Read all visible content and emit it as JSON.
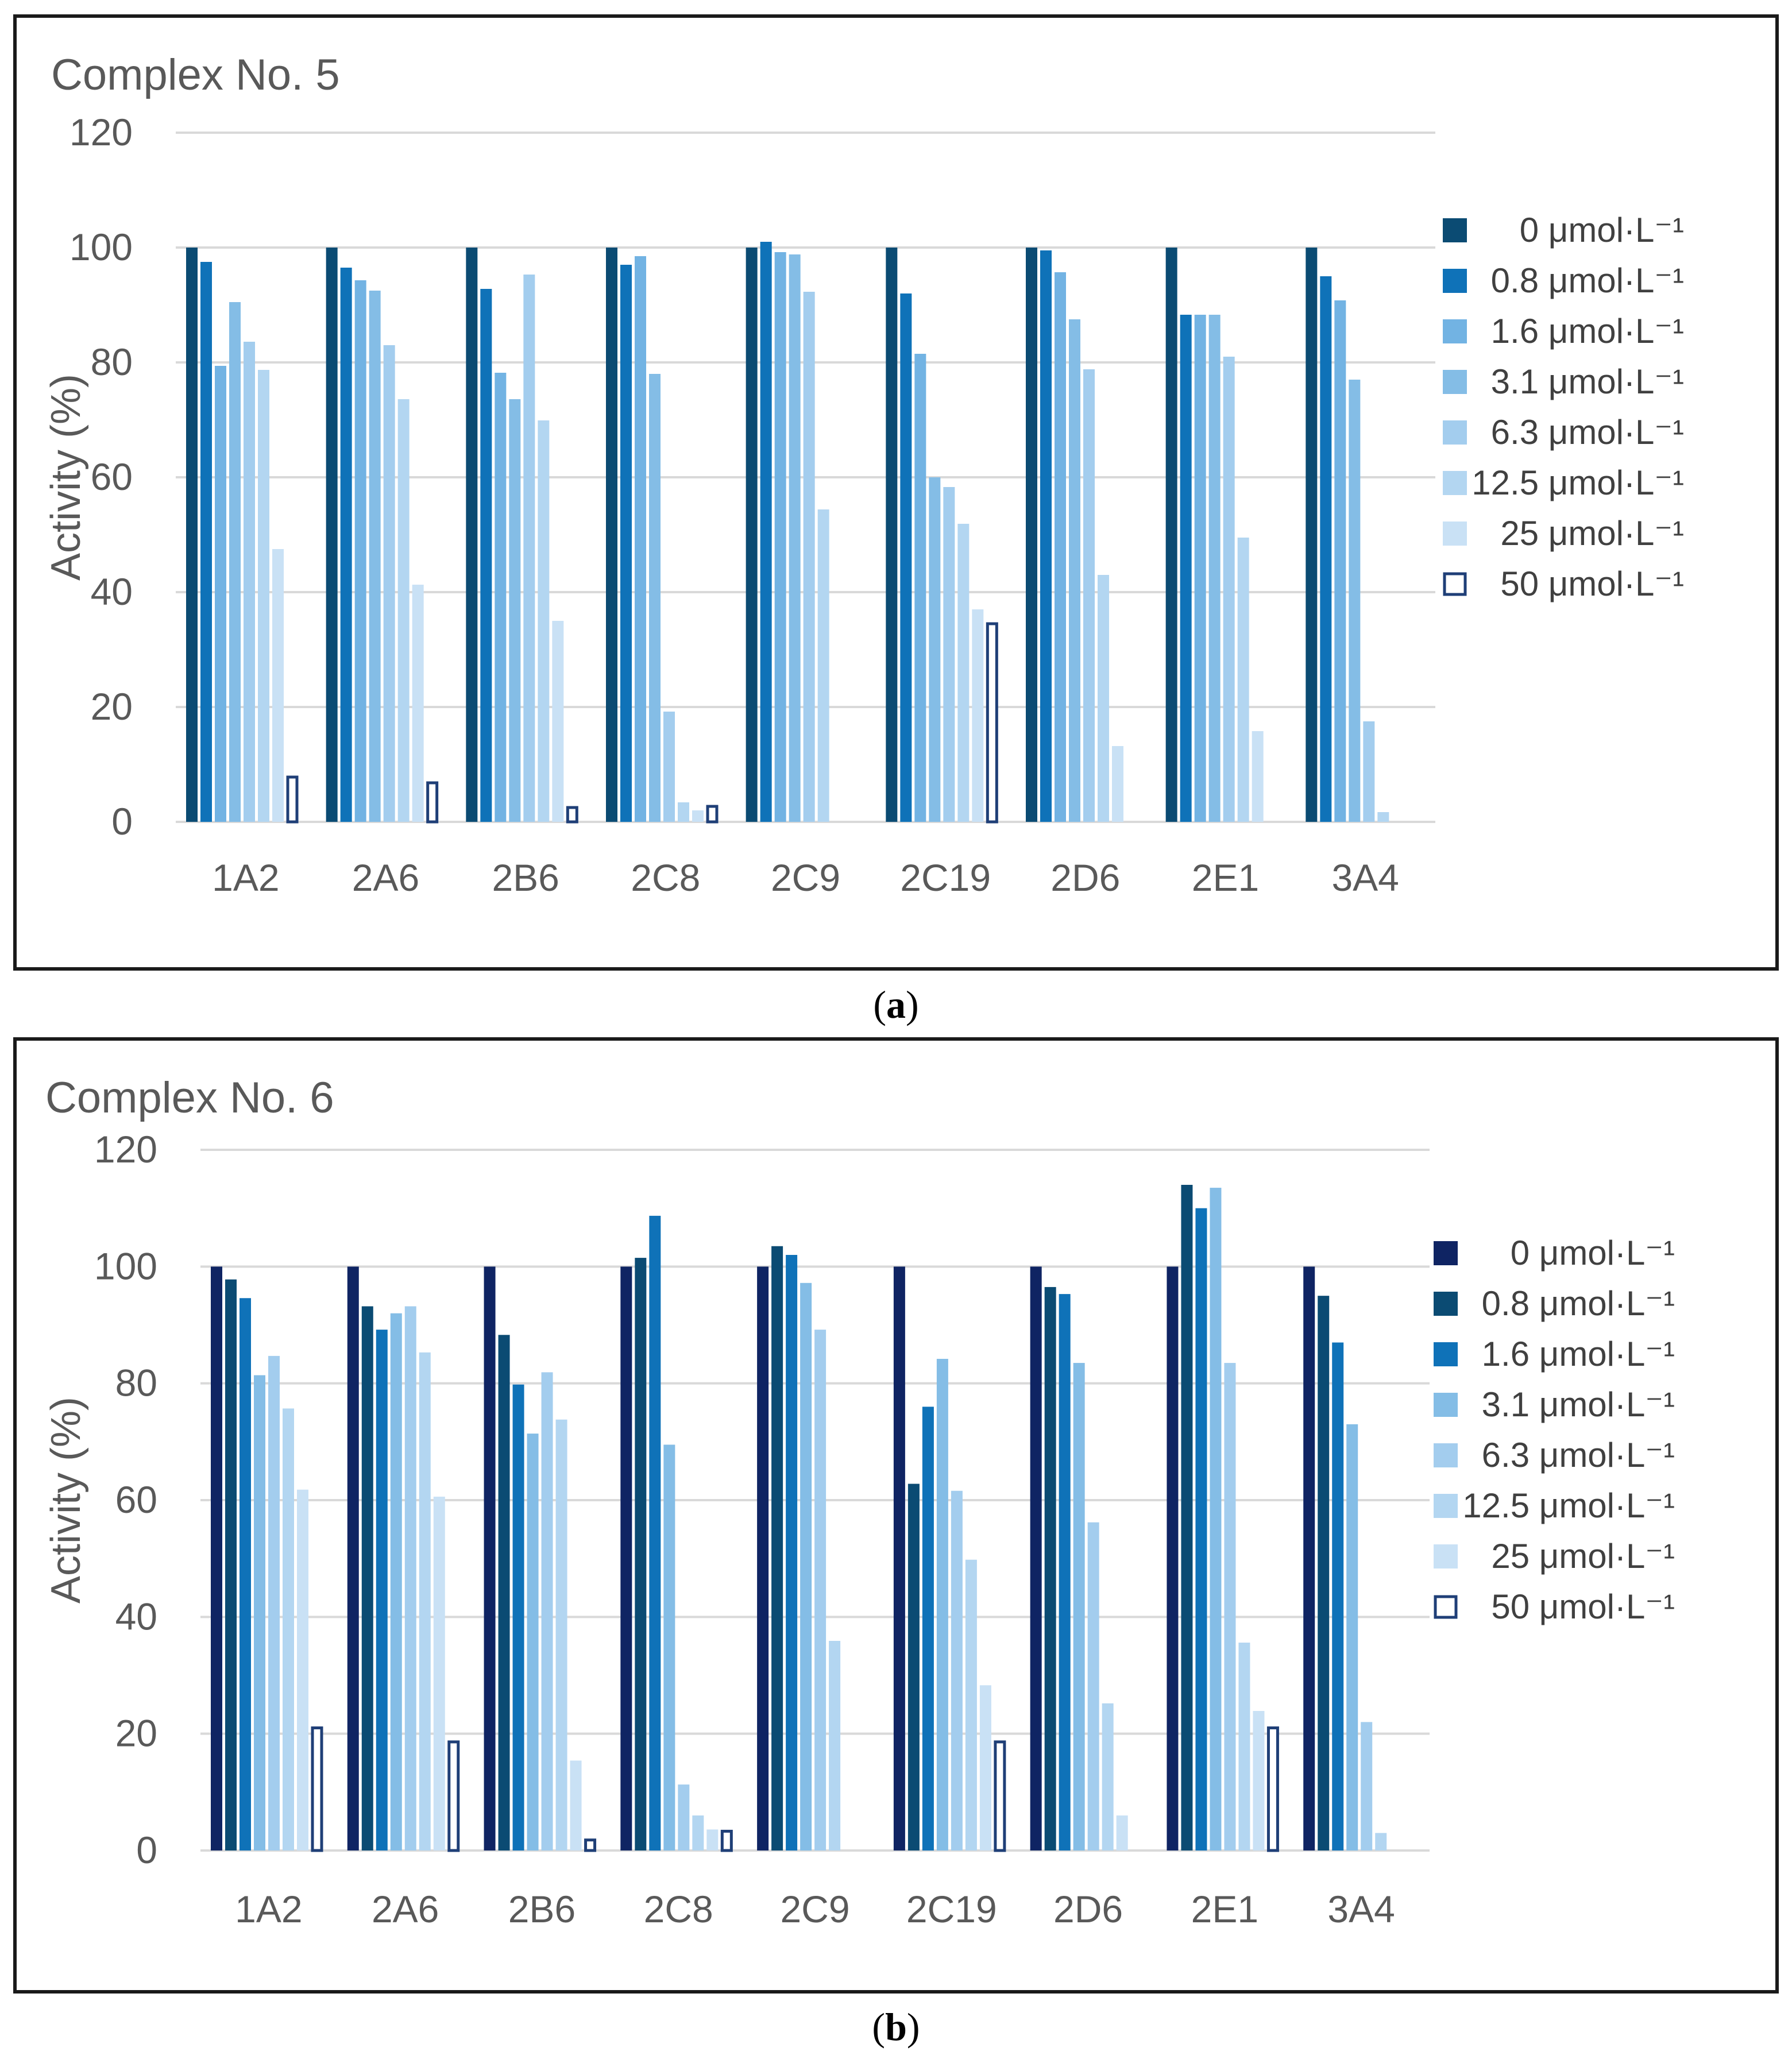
{
  "chart_data": [
    {
      "panel": "a",
      "type": "bar",
      "title": "Complex No. 5",
      "ylabel": "Activity (%)",
      "xlabel": "",
      "ylim": [
        0,
        120
      ],
      "yticks": [
        0,
        20,
        40,
        60,
        80,
        100,
        120
      ],
      "grid": true,
      "legend_position": "right",
      "categories": [
        "1A2",
        "2A6",
        "2B6",
        "2C8",
        "2C9",
        "2C19",
        "2D6",
        "2E1",
        "3A4"
      ],
      "series": [
        {
          "name": "0 μmol·L⁻¹",
          "color": "#0b4b73",
          "hollow": false,
          "values": [
            100,
            100,
            100,
            100,
            100,
            100,
            100,
            100,
            100
          ]
        },
        {
          "name": "0.8 μmol·L⁻¹",
          "color": "#0f72b8",
          "hollow": false,
          "values": [
            97.5,
            96.5,
            92.8,
            97,
            101,
            92,
            99.5,
            88.3,
            95
          ]
        },
        {
          "name": "1.6 μmol·L⁻¹",
          "color": "#72b3e3",
          "hollow": false,
          "values": [
            79.4,
            94.3,
            78.2,
            98.5,
            99.2,
            81.5,
            95.7,
            88.3,
            90.8
          ]
        },
        {
          "name": "3.1 μmol·L⁻¹",
          "color": "#84bde6",
          "hollow": false,
          "values": [
            90.5,
            92.5,
            73.6,
            78,
            98.8,
            60,
            87.5,
            88.3,
            77
          ]
        },
        {
          "name": "6.3 μmol·L⁻¹",
          "color": "#a3cdee",
          "hollow": false,
          "values": [
            83.6,
            83,
            95.3,
            19.2,
            92.3,
            58.3,
            78.8,
            81,
            17.5
          ]
        },
        {
          "name": "12.5 μmol·L⁻¹",
          "color": "#b3d6f1",
          "hollow": false,
          "values": [
            78.7,
            73.6,
            69.9,
            3.4,
            54.4,
            51.9,
            43,
            49.5,
            1.7
          ]
        },
        {
          "name": "25 μmol·L⁻¹",
          "color": "#c9e1f5",
          "hollow": false,
          "values": [
            47.5,
            41.3,
            35,
            2,
            0,
            37,
            13.2,
            15.8,
            0
          ]
        },
        {
          "name": "50 μmol·L⁻¹",
          "color": "#1f3f77",
          "hollow": true,
          "values": [
            7.8,
            6.8,
            2.5,
            2.7,
            0,
            34.5,
            0,
            0,
            0
          ]
        }
      ]
    },
    {
      "panel": "b",
      "type": "bar",
      "title": "Complex No. 6",
      "ylabel": "Activity (%)",
      "xlabel": "",
      "ylim": [
        0,
        120
      ],
      "yticks": [
        0,
        20,
        40,
        60,
        80,
        100,
        120
      ],
      "grid": true,
      "legend_position": "right",
      "categories": [
        "1A2",
        "2A6",
        "2B6",
        "2C8",
        "2C9",
        "2C19",
        "2D6",
        "2E1",
        "3A4"
      ],
      "series": [
        {
          "name": "0 μmol·L⁻¹",
          "color": "#0f2463",
          "hollow": false,
          "values": [
            100,
            100,
            100,
            100,
            100,
            100,
            100,
            100,
            100
          ]
        },
        {
          "name": "0.8 μmol·L⁻¹",
          "color": "#0b4b73",
          "hollow": false,
          "values": [
            97.8,
            93.2,
            88.3,
            101.5,
            103.5,
            62.8,
            96.5,
            114,
            95
          ]
        },
        {
          "name": "1.6 μmol·L⁻¹",
          "color": "#0f72b8",
          "hollow": false,
          "values": [
            94.6,
            89.2,
            79.8,
            108.7,
            102,
            76,
            95.3,
            110,
            87
          ]
        },
        {
          "name": "3.1 μmol·L⁻¹",
          "color": "#84bde6",
          "hollow": false,
          "values": [
            81.4,
            92,
            71.4,
            69.5,
            97.2,
            84.2,
            83.5,
            113.5,
            73
          ]
        },
        {
          "name": "6.3 μmol·L⁻¹",
          "color": "#a3cdee",
          "hollow": false,
          "values": [
            84.7,
            93.2,
            81.9,
            11.3,
            89.2,
            61.6,
            56.2,
            83.5,
            22
          ]
        },
        {
          "name": "12.5 μmol·L⁻¹",
          "color": "#b3d6f1",
          "hollow": false,
          "values": [
            75.7,
            85.3,
            73.8,
            6,
            35.9,
            49.8,
            25.2,
            35.6,
            3
          ]
        },
        {
          "name": "25 μmol·L⁻¹",
          "color": "#c9e1f5",
          "hollow": false,
          "values": [
            61.8,
            60.6,
            15.4,
            3.6,
            0,
            28.3,
            6,
            23.9,
            0
          ]
        },
        {
          "name": "50 μmol·L⁻¹",
          "color": "#1f3f77",
          "hollow": true,
          "values": [
            21,
            18.6,
            1.8,
            3.3,
            0,
            18.6,
            0,
            21,
            0
          ]
        }
      ]
    }
  ],
  "captions": {
    "a": {
      "open": "(",
      "letter": "a",
      "close": ")"
    },
    "b": {
      "open": "(",
      "letter": "b",
      "close": ")"
    }
  }
}
